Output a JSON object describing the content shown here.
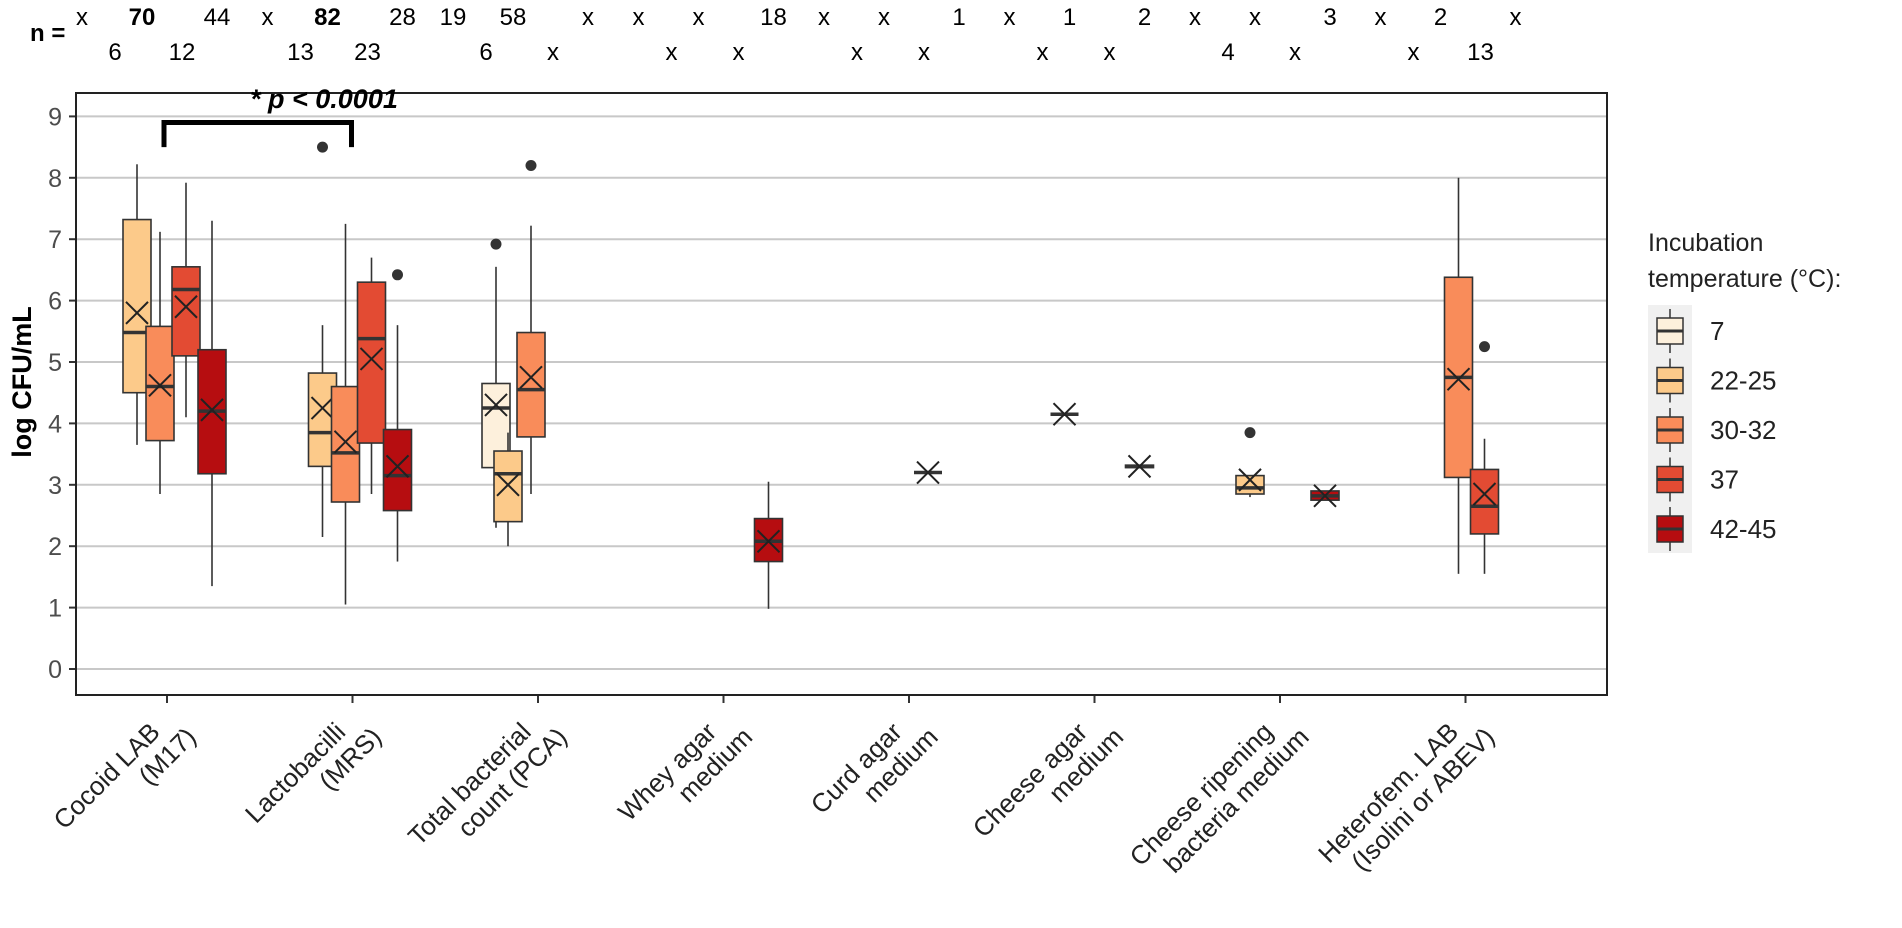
{
  "chart_data": {
    "type": "boxplot",
    "ylabel": "log CFU/mL",
    "ylim": [
      -0.5,
      9.5
    ],
    "y_ticks": [
      "0",
      "1",
      "2",
      "3",
      "4",
      "5",
      "6",
      "7",
      "8",
      "9"
    ],
    "n_label": "n =",
    "significance": "* p < 0.0001",
    "legend": {
      "title_line1": "Incubation",
      "title_line2": "temperature (°C):",
      "entries": [
        {
          "label": "7",
          "color": "#fdf0dc"
        },
        {
          "label": "22-25",
          "color": "#fcca8a"
        },
        {
          "label": "30-32",
          "color": "#f98c5a"
        },
        {
          "label": "37",
          "color": "#e34b33"
        },
        {
          "label": "42-45",
          "color": "#b60d10"
        }
      ]
    },
    "categories": [
      {
        "label1": "Cocoid LAB",
        "label2": "(M17)",
        "n_top": [
          [
            "x",
            false
          ],
          [
            "70",
            true
          ],
          [
            "44",
            false
          ]
        ],
        "n_bottom": [
          [
            "6",
            false
          ],
          [
            "12",
            false
          ]
        ]
      },
      {
        "label1": "Lactobacilli",
        "label2": "(MRS)",
        "n_top": [
          [
            "x",
            false
          ],
          [
            "82",
            true
          ],
          [
            "28",
            false
          ]
        ],
        "n_bottom": [
          [
            "13",
            false
          ],
          [
            "23",
            false
          ]
        ]
      },
      {
        "label1": "Total bacterial",
        "label2": "count (PCA)",
        "n_top": [
          [
            "19",
            false
          ],
          [
            "58",
            false
          ],
          [
            "x",
            false
          ]
        ],
        "n_bottom": [
          [
            "6",
            false
          ],
          [
            "x",
            false
          ]
        ]
      },
      {
        "label1": "Whey agar",
        "label2": "medium",
        "n_top": [
          [
            "x",
            false
          ],
          [
            "x",
            false
          ],
          [
            "18",
            false
          ]
        ],
        "n_bottom": [
          [
            "x",
            false
          ],
          [
            "x",
            false
          ]
        ]
      },
      {
        "label1": "Curd agar",
        "label2": "medium",
        "n_top": [
          [
            "x",
            false
          ],
          [
            "x",
            false
          ],
          [
            "1",
            false
          ]
        ],
        "n_bottom": [
          [
            "x",
            false
          ],
          [
            "x",
            false
          ]
        ]
      },
      {
        "label1": "Cheese agar",
        "label2": "medium",
        "n_top": [
          [
            "x",
            false
          ],
          [
            "1",
            false
          ],
          [
            "2",
            false
          ]
        ],
        "n_bottom": [
          [
            "x",
            false
          ],
          [
            "x",
            false
          ]
        ]
      },
      {
        "label1": "Cheese ripening",
        "label2": "bacteria medium",
        "n_top": [
          [
            "x",
            false
          ],
          [
            "x",
            false
          ],
          [
            "3",
            false
          ]
        ],
        "n_bottom": [
          [
            "4",
            false
          ],
          [
            "x",
            false
          ]
        ]
      },
      {
        "label1": "Heterofem. LAB",
        "label2": "(Isolini or ABEV)",
        "n_top": [
          [
            "x",
            false
          ],
          [
            "2",
            false
          ],
          [
            "x",
            false
          ]
        ],
        "n_bottom": [
          [
            "x",
            false
          ],
          [
            "13",
            false
          ]
        ]
      }
    ],
    "boxes": [
      {
        "category": 0,
        "group": "22-25",
        "min": 3.65,
        "q1": 4.5,
        "median": 5.48,
        "q3": 7.32,
        "max": 8.22,
        "mean": 5.8,
        "outliers": []
      },
      {
        "category": 0,
        "group": "30-32",
        "min": 2.85,
        "q1": 3.72,
        "median": 4.6,
        "q3": 5.58,
        "max": 7.12,
        "mean": 4.62,
        "outliers": []
      },
      {
        "category": 0,
        "group": "37",
        "min": 4.1,
        "q1": 5.1,
        "median": 6.18,
        "q3": 6.55,
        "max": 7.92,
        "mean": 5.9,
        "outliers": []
      },
      {
        "category": 0,
        "group": "42-45",
        "min": 1.35,
        "q1": 3.18,
        "median": 4.2,
        "q3": 5.2,
        "max": 7.3,
        "mean": 4.22,
        "outliers": []
      },
      {
        "category": 1,
        "group": "22-25",
        "min": 2.15,
        "q1": 3.3,
        "median": 3.85,
        "q3": 4.82,
        "max": 5.6,
        "mean": 4.25,
        "outliers": [
          8.5
        ]
      },
      {
        "category": 1,
        "group": "30-32",
        "min": 1.05,
        "q1": 2.72,
        "median": 3.52,
        "q3": 4.6,
        "max": 7.25,
        "mean": 3.7,
        "outliers": []
      },
      {
        "category": 1,
        "group": "37",
        "min": 2.85,
        "q1": 3.68,
        "median": 5.38,
        "q3": 6.3,
        "max": 6.7,
        "mean": 5.05,
        "outliers": []
      },
      {
        "category": 1,
        "group": "42-45",
        "min": 1.75,
        "q1": 2.58,
        "median": 3.15,
        "q3": 3.9,
        "max": 5.6,
        "mean": 3.3,
        "outliers": [
          6.42
        ]
      },
      {
        "category": 2,
        "group": "7",
        "min": 2.3,
        "q1": 3.28,
        "median": 4.25,
        "q3": 4.65,
        "max": 6.55,
        "mean": 4.3,
        "outliers": [
          6.92
        ]
      },
      {
        "category": 2,
        "group": "22-25",
        "min": 2.0,
        "q1": 2.4,
        "median": 3.18,
        "q3": 3.55,
        "max": 3.85,
        "mean": 3.0,
        "outliers": []
      },
      {
        "category": 2,
        "group": "30-32",
        "min": 2.85,
        "q1": 3.78,
        "median": 4.55,
        "q3": 5.48,
        "max": 7.22,
        "mean": 4.75,
        "outliers": [
          8.2
        ]
      },
      {
        "category": 3,
        "group": "42-45",
        "min": 0.98,
        "q1": 1.75,
        "median": 2.08,
        "q3": 2.45,
        "max": 3.05,
        "mean": 2.08,
        "outliers": []
      },
      {
        "category": 4,
        "group": "37",
        "min": 3.2,
        "q1": 3.2,
        "median": 3.2,
        "q3": 3.2,
        "max": 3.2,
        "mean": 3.2,
        "outliers": []
      },
      {
        "category": 5,
        "group": "22-25",
        "min": 4.15,
        "q1": 4.15,
        "median": 4.15,
        "q3": 4.15,
        "max": 4.15,
        "mean": 4.15,
        "outliers": []
      },
      {
        "category": 5,
        "group": "42-45",
        "min": 3.28,
        "q1": 3.28,
        "median": 3.3,
        "q3": 3.32,
        "max": 3.32,
        "mean": 3.3,
        "outliers": []
      },
      {
        "category": 6,
        "group": "22-25",
        "min": 2.8,
        "q1": 2.85,
        "median": 2.95,
        "q3": 3.15,
        "max": 3.15,
        "mean": 3.08,
        "outliers": [
          3.85
        ]
      },
      {
        "category": 6,
        "group": "42-45",
        "min": 2.75,
        "q1": 2.75,
        "median": 2.82,
        "q3": 2.9,
        "max": 2.9,
        "mean": 2.82,
        "outliers": []
      },
      {
        "category": 7,
        "group": "30-32",
        "min": 1.55,
        "q1": 3.12,
        "median": 4.75,
        "q3": 6.38,
        "max": 8.0,
        "mean": 4.72,
        "outliers": []
      },
      {
        "category": 7,
        "group": "37",
        "min": 1.55,
        "q1": 2.2,
        "median": 2.65,
        "q3": 3.25,
        "max": 3.75,
        "mean": 2.85,
        "outliers": [
          5.25
        ]
      }
    ]
  }
}
